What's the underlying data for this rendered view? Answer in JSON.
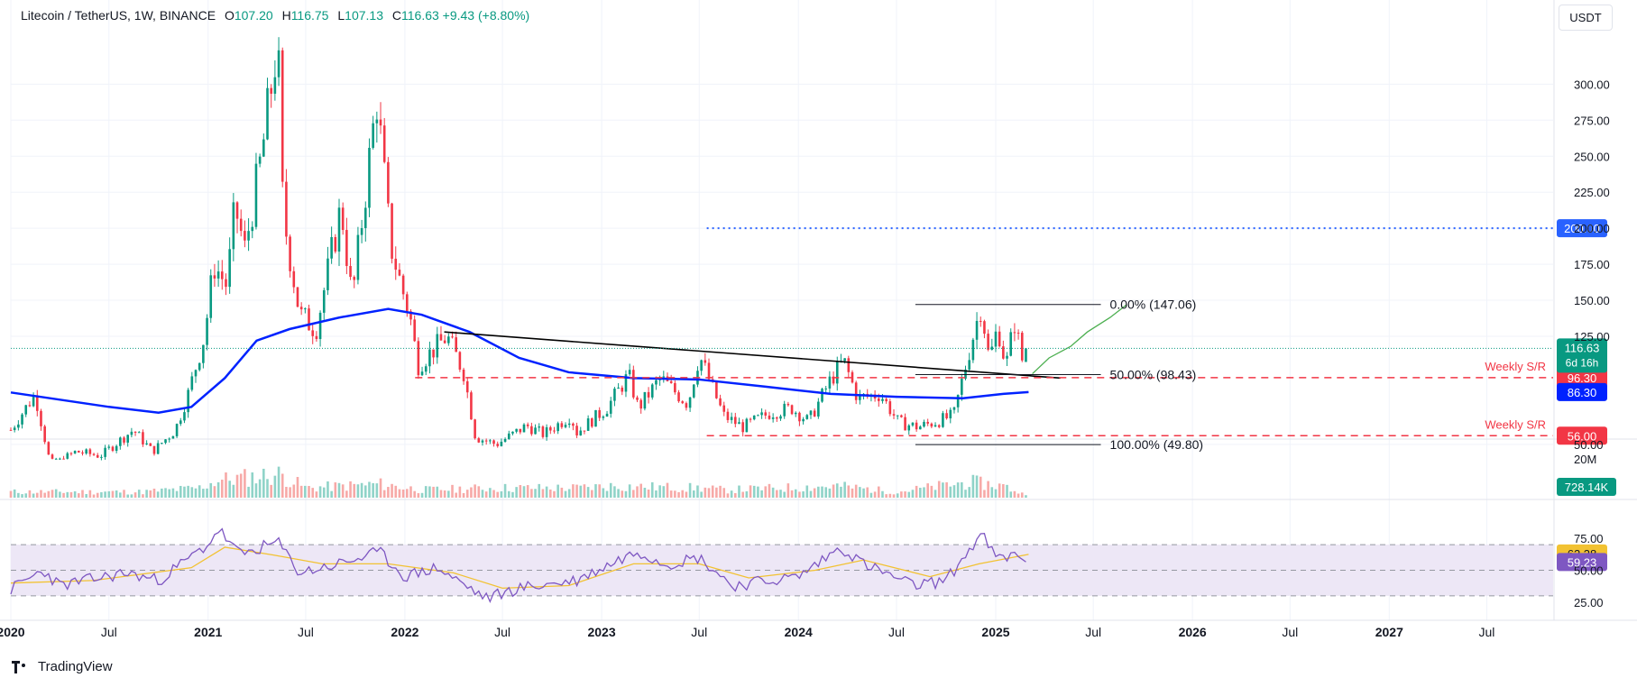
{
  "header": {
    "symbol": "Litecoin / TetherUS, 1W, BINANCE",
    "open_label": "O",
    "open_value": "107.20",
    "high_label": "H",
    "high_value": "116.75",
    "low_label": "L",
    "low_value": "107.13",
    "close_label": "C",
    "close_value": "116.63",
    "change": "+9.43 (+8.80%)"
  },
  "currency_button": "USDT",
  "brand": "TradingView",
  "colors": {
    "up": "#089981",
    "up_light": "#8fd3c8",
    "down": "#f23645",
    "down_light": "#f7a9a7",
    "ma": "#0022ff",
    "target": "#2962ff",
    "support": "#f23645",
    "rsi": "#7e57c2",
    "rsi_ma": "#f2c232",
    "rsi_band": "#ede7f6",
    "trendline": "#000000",
    "projection": "#4caf50"
  },
  "chart_data": [
    {
      "type": "candlestick",
      "title": "Litecoin / TetherUS, 1W, BINANCE",
      "y_axis_ticks": [
        "300.00",
        "275.00",
        "250.00",
        "225.00",
        "200.00",
        "175.00",
        "150.00",
        "125.00",
        "50.00"
      ],
      "ylim": [
        40,
        320
      ],
      "x_axis_ticks": [
        "2020",
        "Jul",
        "2021",
        "Jul",
        "2022",
        "Jul",
        "2023",
        "Jul",
        "2024",
        "Jul",
        "2025",
        "Jul",
        "2026",
        "Jul",
        "2027",
        "Jul"
      ],
      "xlim": [
        "2020-01-01",
        "2027-11-01"
      ],
      "last_price": "116.63",
      "last_price_countdown": "6d 16h",
      "price_path": [
        [
          "2020-01-01",
          60
        ],
        [
          "2020-02-15",
          85
        ],
        [
          "2020-03-15",
          35
        ],
        [
          "2020-05-01",
          45
        ],
        [
          "2020-06-15",
          42
        ],
        [
          "2020-08-15",
          60
        ],
        [
          "2020-09-20",
          45
        ],
        [
          "2020-11-01",
          60
        ],
        [
          "2020-11-25",
          85
        ],
        [
          "2020-12-25",
          125
        ],
        [
          "2021-01-12",
          175
        ],
        [
          "2021-02-05",
          160
        ],
        [
          "2021-02-20",
          215
        ],
        [
          "2021-03-10",
          185
        ],
        [
          "2021-04-10",
          250
        ],
        [
          "2021-05-10",
          330
        ],
        [
          "2021-05-20",
          210
        ],
        [
          "2021-06-20",
          140
        ],
        [
          "2021-07-20",
          130
        ],
        [
          "2021-09-05",
          215
        ],
        [
          "2021-09-25",
          150
        ],
        [
          "2021-11-10",
          290
        ],
        [
          "2021-12-05",
          190
        ],
        [
          "2021-12-25",
          160
        ],
        [
          "2022-01-10",
          140
        ],
        [
          "2022-01-25",
          105
        ],
        [
          "2022-03-20",
          125
        ],
        [
          "2022-04-20",
          100
        ],
        [
          "2022-05-12",
          55
        ],
        [
          "2022-06-20",
          50
        ],
        [
          "2022-08-15",
          63
        ],
        [
          "2022-09-15",
          57
        ],
        [
          "2022-11-05",
          70
        ],
        [
          "2022-11-15",
          58
        ],
        [
          "2023-01-10",
          75
        ],
        [
          "2023-02-20",
          98
        ],
        [
          "2023-03-10",
          75
        ],
        [
          "2023-04-20",
          96
        ],
        [
          "2023-06-10",
          78
        ],
        [
          "2023-07-01",
          112
        ],
        [
          "2023-08-15",
          70
        ],
        [
          "2023-09-20",
          62
        ],
        [
          "2023-11-10",
          72
        ],
        [
          "2023-12-20",
          75
        ],
        [
          "2024-01-20",
          66
        ],
        [
          "2024-03-01",
          95
        ],
        [
          "2024-03-25",
          108
        ],
        [
          "2024-04-20",
          82
        ],
        [
          "2024-06-01",
          85
        ],
        [
          "2024-07-05",
          65
        ],
        [
          "2024-08-10",
          62
        ],
        [
          "2024-09-15",
          66
        ],
        [
          "2024-10-15",
          70
        ],
        [
          "2024-11-15",
          118
        ],
        [
          "2024-12-05",
          147
        ],
        [
          "2024-12-20",
          108
        ],
        [
          "2025-01-05",
          132
        ],
        [
          "2025-01-20",
          104
        ],
        [
          "2025-02-05",
          135
        ],
        [
          "2025-02-20",
          107
        ],
        [
          "2025-03-03",
          116.63
        ]
      ],
      "series": [
        {
          "name": "",
          "type": "moving_average",
          "values": [
            [
              "2020-01-01",
              86
            ],
            [
              "2020-07-01",
              76
            ],
            [
              "2020-10-01",
              72
            ],
            [
              "2020-12-01",
              76
            ],
            [
              "2021-02-01",
              96
            ],
            [
              "2021-04-01",
              122
            ],
            [
              "2021-06-01",
              130
            ],
            [
              "2021-09-01",
              138
            ],
            [
              "2021-12-01",
              144
            ],
            [
              "2022-02-01",
              140
            ],
            [
              "2022-05-01",
              128
            ],
            [
              "2022-08-01",
              110
            ],
            [
              "2022-11-01",
              100
            ],
            [
              "2023-03-01",
              96
            ],
            [
              "2023-07-01",
              95
            ],
            [
              "2023-11-01",
              90
            ],
            [
              "2024-03-01",
              85
            ],
            [
              "2024-07-01",
              83
            ],
            [
              "2024-11-01",
              82
            ],
            [
              "2025-01-15",
              85
            ],
            [
              "2025-03-03",
              86.3
            ]
          ]
        },
        {
          "name": "",
          "type": "projection",
          "values": [
            [
              "2025-03-10",
              99
            ],
            [
              "2025-04-10",
              110
            ],
            [
              "2025-05-20",
              118
            ],
            [
              "2025-06-20",
              128
            ],
            [
              "2025-08-01",
              138
            ],
            [
              "2025-09-01",
              147
            ]
          ]
        }
      ],
      "trendline": [
        [
          "2022-03-15",
          128
        ],
        [
          "2025-05-01",
          96
        ]
      ],
      "levels": [
        {
          "label": "200.00",
          "value": 200,
          "style": "dotted",
          "from": "2023-07-15"
        },
        {
          "label": "Weekly S/R",
          "price_label": "96.30",
          "value": 96.3,
          "style": "dashed",
          "from": "2022-01-20"
        },
        {
          "label": "Weekly S/R",
          "price_label": "56.00",
          "value": 56,
          "style": "dashed",
          "from": "2023-07-15"
        },
        {
          "label": "",
          "price_label": "86.30",
          "value": 86.3,
          "style": "tag"
        }
      ],
      "fibonacci": [
        {
          "label": "0.00% (147.06)",
          "value": 147.06
        },
        {
          "label": "50.00% (98.43)",
          "value": 98.43
        },
        {
          "label": "100.00% (49.80)",
          "value": 49.8
        }
      ],
      "fib_range": [
        "2024-08-05",
        "2025-07-15"
      ]
    },
    {
      "type": "bar",
      "title": "Volume",
      "y_axis_ticks": [
        "20M"
      ],
      "ylim": [
        0,
        25
      ],
      "last_value_label": "728.14K",
      "volume_path": [
        [
          "2020-01-01",
          3
        ],
        [
          "2020-09-01",
          3
        ],
        [
          "2020-12-15",
          5
        ],
        [
          "2021-01-20",
          9
        ],
        [
          "2021-05-15",
          12
        ],
        [
          "2021-07-01",
          5
        ],
        [
          "2021-11-15",
          7
        ],
        [
          "2022-02-01",
          4
        ],
        [
          "2022-06-15",
          5
        ],
        [
          "2022-11-15",
          5
        ],
        [
          "2023-01-15",
          6
        ],
        [
          "2023-07-01",
          5
        ],
        [
          "2023-08-15",
          4
        ],
        [
          "2024-03-15",
          6
        ],
        [
          "2024-07-01",
          3
        ],
        [
          "2024-11-15",
          8
        ],
        [
          "2025-01-15",
          6
        ],
        [
          "2025-03-03",
          0.73
        ]
      ]
    },
    {
      "type": "line",
      "title": "RSI",
      "y_axis_ticks": [
        "75.00",
        "50.00",
        "25.00"
      ],
      "ylim": [
        20,
        85
      ],
      "band": [
        30,
        70
      ],
      "mid": 50,
      "value_labels": [
        "62.38",
        "59.23"
      ],
      "series": [
        {
          "name": "",
          "values": [
            [
              "2020-01-01",
              35
            ],
            [
              "2020-03-01",
              50
            ],
            [
              "2020-04-01",
              38
            ],
            [
              "2020-08-01",
              48
            ],
            [
              "2020-10-01",
              42
            ],
            [
              "2021-01-01",
              70
            ],
            [
              "2021-01-20",
              82
            ],
            [
              "2021-03-01",
              62
            ],
            [
              "2021-05-10",
              72
            ],
            [
              "2021-06-20",
              48
            ],
            [
              "2021-09-01",
              55
            ],
            [
              "2021-11-15",
              64
            ],
            [
              "2022-01-01",
              45
            ],
            [
              "2022-03-01",
              52
            ],
            [
              "2022-06-01",
              28
            ],
            [
              "2022-08-01",
              36
            ],
            [
              "2022-11-15",
              42
            ],
            [
              "2023-02-01",
              58
            ],
            [
              "2023-03-10",
              65
            ],
            [
              "2023-05-01",
              55
            ],
            [
              "2023-07-01",
              60
            ],
            [
              "2023-09-01",
              38
            ],
            [
              "2024-01-01",
              45
            ],
            [
              "2024-03-20",
              68
            ],
            [
              "2024-05-01",
              55
            ],
            [
              "2024-08-01",
              38
            ],
            [
              "2024-10-01",
              42
            ],
            [
              "2024-12-05",
              78
            ],
            [
              "2025-01-05",
              58
            ],
            [
              "2025-02-05",
              62
            ],
            [
              "2025-03-03",
              59.23
            ]
          ]
        },
        {
          "name": "",
          "values": [
            [
              "2020-01-01",
              40
            ],
            [
              "2020-06-01",
              42
            ],
            [
              "2020-12-01",
              52
            ],
            [
              "2021-02-01",
              68
            ],
            [
              "2021-05-01",
              62
            ],
            [
              "2021-08-01",
              55
            ],
            [
              "2021-12-01",
              55
            ],
            [
              "2022-04-01",
              48
            ],
            [
              "2022-07-01",
              36
            ],
            [
              "2022-11-01",
              38
            ],
            [
              "2023-03-01",
              55
            ],
            [
              "2023-07-01",
              55
            ],
            [
              "2023-10-01",
              44
            ],
            [
              "2024-02-01",
              50
            ],
            [
              "2024-05-01",
              58
            ],
            [
              "2024-09-01",
              45
            ],
            [
              "2024-12-01",
              55
            ],
            [
              "2025-03-03",
              62.38
            ]
          ]
        }
      ]
    }
  ]
}
